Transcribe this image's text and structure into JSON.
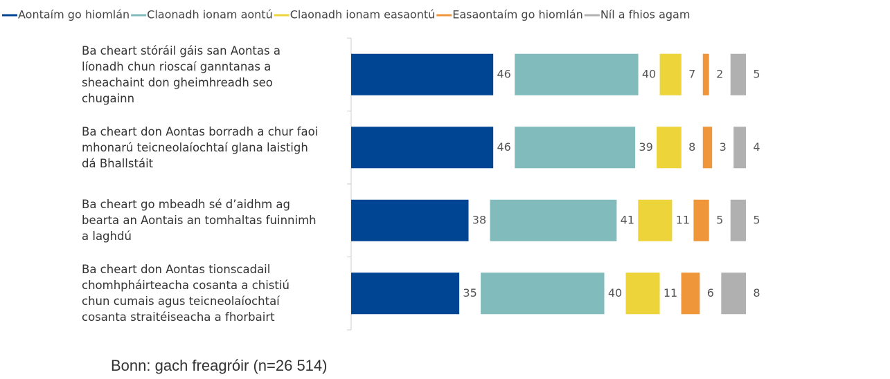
{
  "chart_data": {
    "type": "bar",
    "stacked": true,
    "orientation": "horizontal",
    "categories": [
      "Ba cheart stóráil gáis san Aontas a líonadh chun rioscaí ganntanas a sheachaint don gheimhreadh seo chugainn",
      "Ba cheart don Aontas borradh a chur faoi mhonarú teicneolaíochtaí glana laistigh dá Bhallstáit",
      "Ba cheart go mbeadh sé d’aidhm ag bearta an Aontais an tomhaltas fuinnimh a laghdú",
      "Ba cheart don Aontas tionscadail chomhpháirteacha cosanta a chistiú chun cumais agus teicneolaíochtaí cosanta straitéiseacha a fhorbairt"
    ],
    "series": [
      {
        "name": "Aontaím go hiomlán",
        "color": "#004494",
        "values": [
          46,
          46,
          38,
          35
        ]
      },
      {
        "name": "Claonadh ionam aontú",
        "color": "#82bbbb",
        "values": [
          40,
          39,
          41,
          40
        ]
      },
      {
        "name": "Claonadh ionam easaontú",
        "color": "#ecd43a",
        "values": [
          7,
          8,
          11,
          11
        ]
      },
      {
        "name": "Easaontaím go hiomlán",
        "color": "#f0963a",
        "values": [
          2,
          3,
          5,
          6
        ]
      },
      {
        "name": "Níl a fhios agam",
        "color": "#b0b0b0",
        "values": [
          5,
          4,
          5,
          8
        ]
      }
    ],
    "legend": "top",
    "note": "Bonn: gach freagróir (n=26 514)"
  }
}
